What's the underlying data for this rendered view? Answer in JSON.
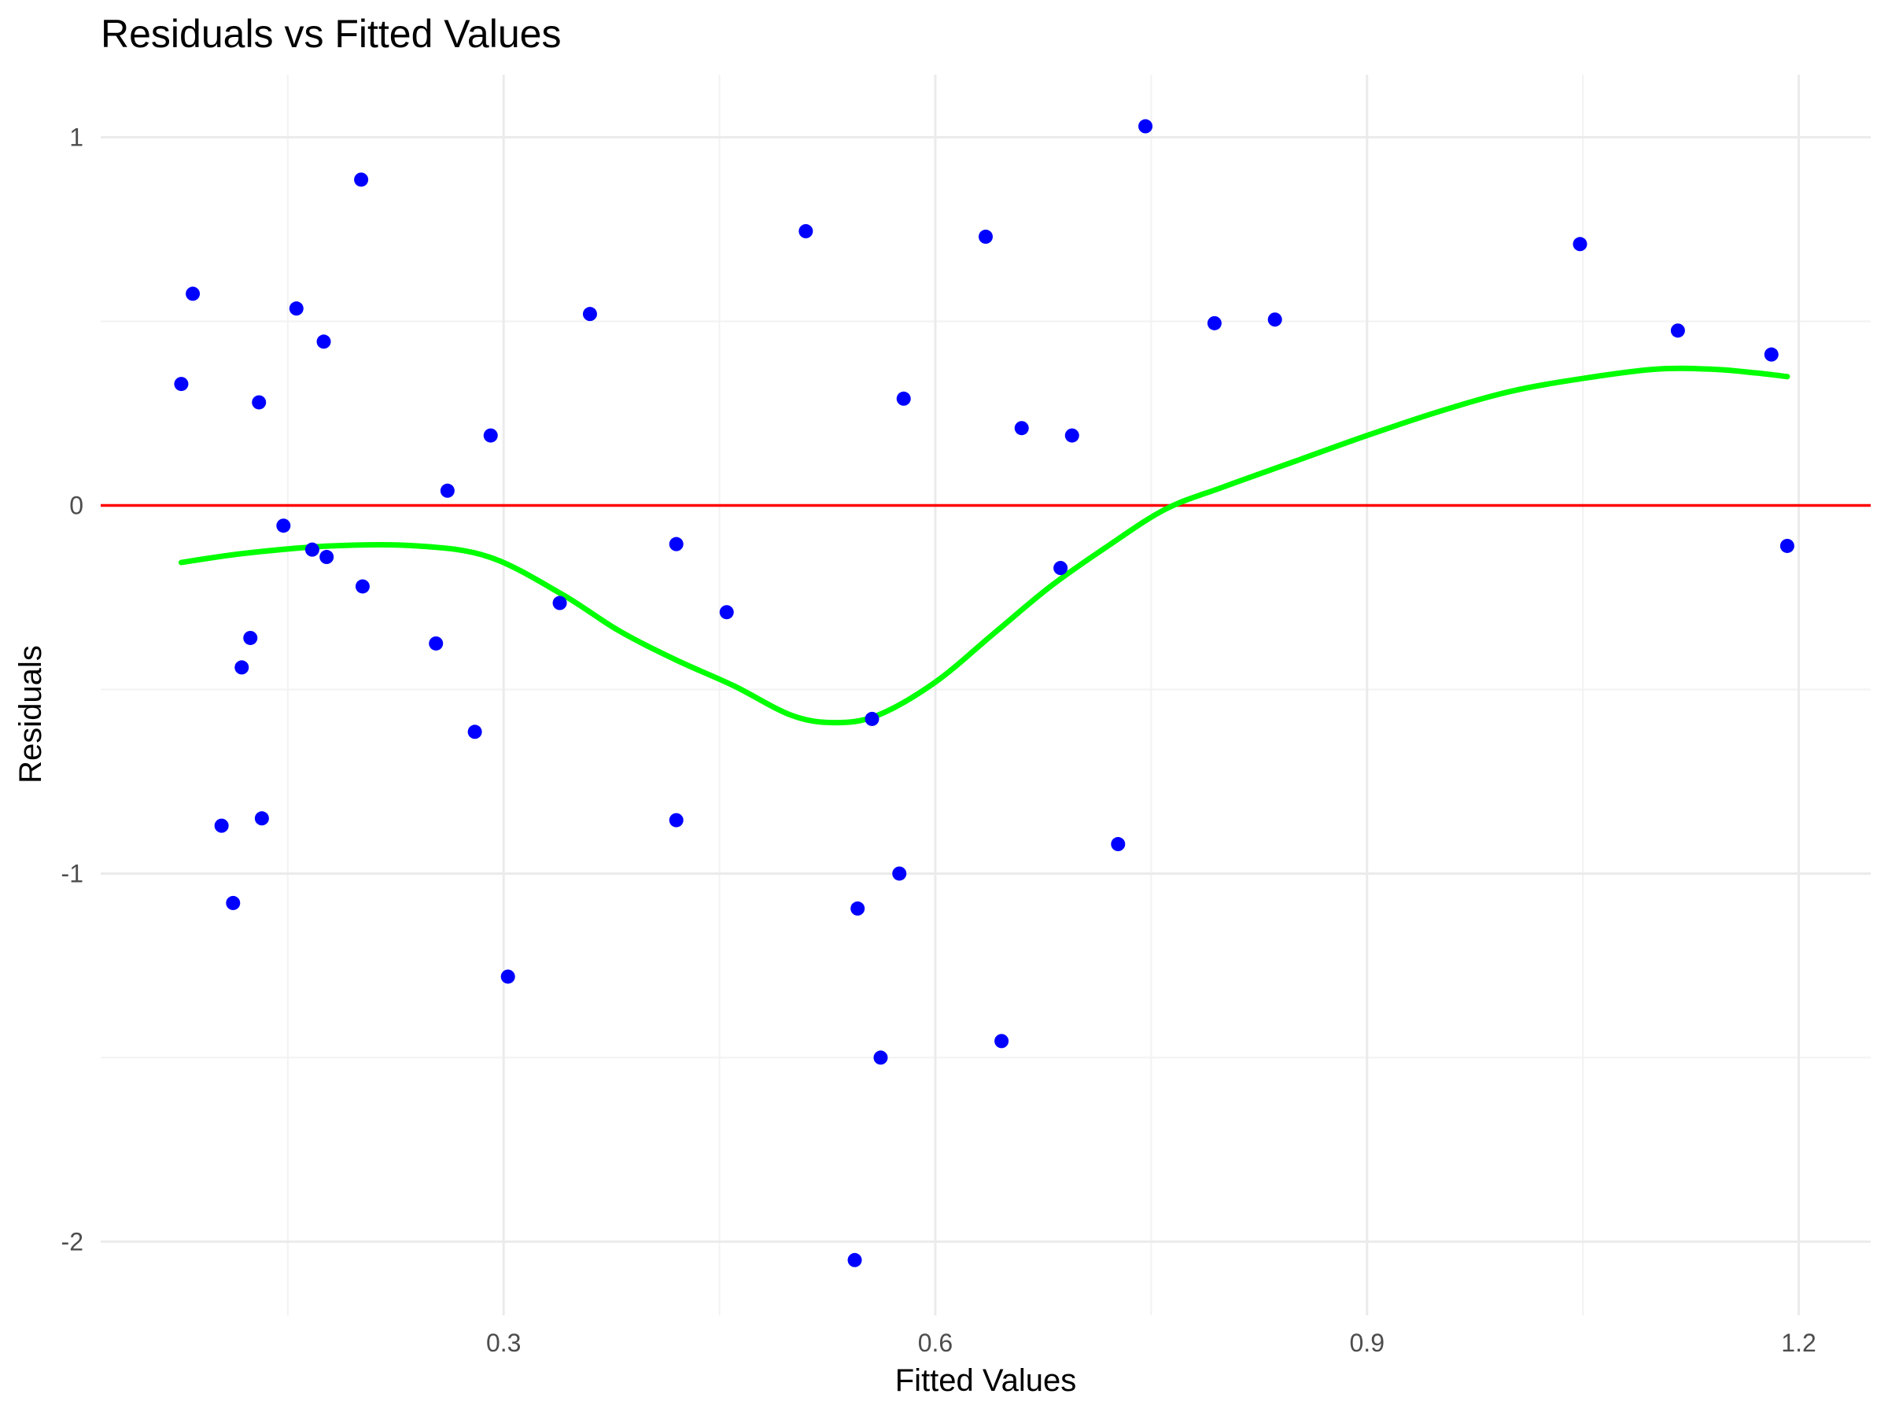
{
  "chart_data": {
    "type": "scatter",
    "title": "Residuals vs Fitted Values",
    "xlabel": "Fitted Values",
    "ylabel": "Residuals",
    "xlim": [
      0.02,
      1.25
    ],
    "ylim": [
      -2.2,
      1.17
    ],
    "x_ticks": [
      0.3,
      0.6,
      0.9,
      1.2
    ],
    "x_tick_labels": [
      "0.3",
      "0.6",
      "0.9",
      "1.2"
    ],
    "x_minor_ticks": [
      0.15,
      0.45,
      0.75,
      1.05
    ],
    "y_ticks": [
      -2,
      -1,
      0,
      1
    ],
    "y_tick_labels": [
      "-2",
      "-1",
      "0",
      "1"
    ],
    "y_minor_ticks": [
      -1.5,
      -0.5,
      0.5
    ],
    "grid": true,
    "legend": "none",
    "colors": {
      "points": "#0000ff",
      "zero_line": "#ff0000",
      "smooth": "#00ff00",
      "grid": "#ebebeb"
    },
    "reference_line": {
      "y": 0
    },
    "points": [
      {
        "x": 0.076,
        "y": 0.33
      },
      {
        "x": 0.084,
        "y": 0.575
      },
      {
        "x": 0.104,
        "y": -0.87
      },
      {
        "x": 0.112,
        "y": -1.08
      },
      {
        "x": 0.118,
        "y": -0.44
      },
      {
        "x": 0.124,
        "y": -0.36
      },
      {
        "x": 0.13,
        "y": 0.28
      },
      {
        "x": 0.132,
        "y": -0.85
      },
      {
        "x": 0.147,
        "y": -0.055
      },
      {
        "x": 0.156,
        "y": 0.535
      },
      {
        "x": 0.167,
        "y": -0.12
      },
      {
        "x": 0.175,
        "y": 0.445
      },
      {
        "x": 0.177,
        "y": -0.14
      },
      {
        "x": 0.201,
        "y": 0.885
      },
      {
        "x": 0.202,
        "y": -0.22
      },
      {
        "x": 0.253,
        "y": -0.375
      },
      {
        "x": 0.261,
        "y": 0.04
      },
      {
        "x": 0.28,
        "y": -0.615
      },
      {
        "x": 0.291,
        "y": 0.19
      },
      {
        "x": 0.303,
        "y": -1.28
      },
      {
        "x": 0.339,
        "y": -0.265
      },
      {
        "x": 0.36,
        "y": 0.52
      },
      {
        "x": 0.42,
        "y": -0.105
      },
      {
        "x": 0.42,
        "y": -0.855
      },
      {
        "x": 0.455,
        "y": -0.29
      },
      {
        "x": 0.51,
        "y": 0.745
      },
      {
        "x": 0.544,
        "y": -2.05
      },
      {
        "x": 0.546,
        "y": -1.095
      },
      {
        "x": 0.556,
        "y": -0.58
      },
      {
        "x": 0.562,
        "y": -1.5
      },
      {
        "x": 0.575,
        "y": -1.0
      },
      {
        "x": 0.578,
        "y": 0.29
      },
      {
        "x": 0.635,
        "y": 0.73
      },
      {
        "x": 0.646,
        "y": -1.455
      },
      {
        "x": 0.66,
        "y": 0.21
      },
      {
        "x": 0.687,
        "y": -0.17
      },
      {
        "x": 0.695,
        "y": 0.19
      },
      {
        "x": 0.727,
        "y": -0.92
      },
      {
        "x": 0.746,
        "y": 1.03
      },
      {
        "x": 0.794,
        "y": 0.495
      },
      {
        "x": 0.836,
        "y": 0.505
      },
      {
        "x": 1.048,
        "y": 0.71
      },
      {
        "x": 1.116,
        "y": 0.475
      },
      {
        "x": 1.181,
        "y": 0.41
      },
      {
        "x": 1.192,
        "y": -0.11
      }
    ],
    "smooth_line": [
      {
        "x": 0.076,
        "y": -0.155
      },
      {
        "x": 0.12,
        "y": -0.13
      },
      {
        "x": 0.18,
        "y": -0.11
      },
      {
        "x": 0.24,
        "y": -0.11
      },
      {
        "x": 0.29,
        "y": -0.14
      },
      {
        "x": 0.34,
        "y": -0.24
      },
      {
        "x": 0.38,
        "y": -0.34
      },
      {
        "x": 0.42,
        "y": -0.42
      },
      {
        "x": 0.46,
        "y": -0.49
      },
      {
        "x": 0.5,
        "y": -0.57
      },
      {
        "x": 0.53,
        "y": -0.59
      },
      {
        "x": 0.56,
        "y": -0.57
      },
      {
        "x": 0.6,
        "y": -0.48
      },
      {
        "x": 0.64,
        "y": -0.35
      },
      {
        "x": 0.68,
        "y": -0.22
      },
      {
        "x": 0.72,
        "y": -0.11
      },
      {
        "x": 0.76,
        "y": -0.01
      },
      {
        "x": 0.8,
        "y": 0.05
      },
      {
        "x": 0.85,
        "y": 0.12
      },
      {
        "x": 0.9,
        "y": 0.19
      },
      {
        "x": 0.95,
        "y": 0.255
      },
      {
        "x": 1.0,
        "y": 0.31
      },
      {
        "x": 1.05,
        "y": 0.345
      },
      {
        "x": 1.1,
        "y": 0.37
      },
      {
        "x": 1.14,
        "y": 0.37
      },
      {
        "x": 1.17,
        "y": 0.36
      },
      {
        "x": 1.192,
        "y": 0.35
      }
    ]
  }
}
